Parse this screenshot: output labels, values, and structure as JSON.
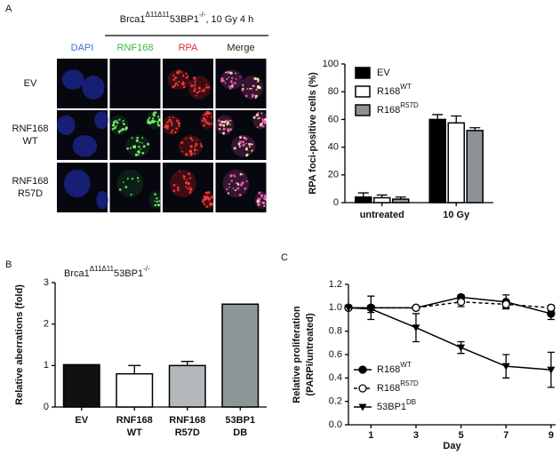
{
  "panel_labels": [
    "A",
    "B",
    "C"
  ],
  "microscopy": {
    "title_parts": [
      "Brca1",
      "Δ11Δ11",
      "53BP1",
      "-/-",
      ", 10 Gy 4 h"
    ],
    "columns": [
      {
        "label": "DAPI",
        "color": "#3f6fd8"
      },
      {
        "label": "RNF168",
        "color": "#3cb83c"
      },
      {
        "label": "RPA",
        "color": "#e03030"
      },
      {
        "label": "Merge",
        "color": "#222222"
      }
    ],
    "rows": [
      [
        "EV"
      ],
      [
        "RNF168",
        "WT"
      ],
      [
        "RNF168",
        "R57D"
      ]
    ]
  },
  "chart_data": [
    {
      "type": "bar",
      "ylabel": "RPA foci-positive cells (%)",
      "categories": [
        "untreated",
        "10 Gy"
      ],
      "series": [
        {
          "name": "EV",
          "color": "#000000",
          "values": [
            4,
            60
          ],
          "errors": [
            3,
            3.5
          ]
        },
        {
          "name": "R168",
          "name_sup": "WT",
          "color": "#ffffff",
          "values": [
            3.5,
            57.5
          ],
          "errors": [
            2,
            5
          ]
        },
        {
          "name": "R168",
          "name_sup": "R57D",
          "color": "#8c9396",
          "values": [
            2.5,
            52
          ],
          "errors": [
            1.5,
            2
          ]
        }
      ],
      "ylim": [
        0,
        100
      ],
      "yticks": [
        0,
        20,
        40,
        60,
        80,
        100
      ],
      "legend": "upper left"
    },
    {
      "type": "bar",
      "title_parts": [
        "Brca1",
        "Δ11Δ11",
        "53BP1",
        "-/-"
      ],
      "ylabel": "Relative aberrations (fold)",
      "categories": [
        [
          "EV"
        ],
        [
          "RNF168",
          "WT"
        ],
        [
          "RNF168",
          "R57D"
        ],
        [
          "53BP1",
          "DB"
        ]
      ],
      "values": [
        1.02,
        0.8,
        1.0,
        2.48
      ],
      "errors": [
        null,
        0.2,
        0.1,
        null
      ],
      "colors": [
        "#111111",
        "#ffffff",
        "#b2b8bc",
        "#8e9598"
      ],
      "ylim": [
        0,
        3
      ],
      "yticks": [
        0,
        1,
        2,
        3
      ]
    },
    {
      "type": "line",
      "ylabel": [
        "Relative proliferation",
        "(PARPi/untreated)"
      ],
      "xlabel": "Day",
      "x": [
        0,
        1,
        3,
        5,
        7,
        9
      ],
      "series": [
        {
          "name": "R168",
          "name_sup": "WT",
          "color": "#000000",
          "marker": "circle",
          "values": [
            1.0,
            1.0,
            1.0,
            1.09,
            1.05,
            0.95
          ],
          "errors": [
            0,
            0.1,
            0.01,
            0.02,
            0.06,
            0.05
          ]
        },
        {
          "name": "R168",
          "name_sup": "R57D",
          "color": "#000000",
          "marker": "open-circle",
          "dashed": true,
          "values": [
            1.0,
            1.0,
            1.0,
            1.05,
            1.03,
            1.0
          ],
          "errors": [
            0,
            0.02,
            0.01,
            0.04,
            0.03,
            0.02
          ]
        },
        {
          "name": "53BP1",
          "name_sup": "DB",
          "color": "#000000",
          "marker": "triangle-down",
          "values": [
            1.0,
            0.99,
            0.83,
            0.66,
            0.5,
            0.47
          ],
          "errors": [
            0,
            0.03,
            0.12,
            0.05,
            0.1,
            0.15
          ]
        }
      ],
      "xlim": [
        0,
        9.2
      ],
      "xticks": [
        1,
        3,
        5,
        7,
        9
      ],
      "ylim": [
        0,
        1.2
      ],
      "yticks": [
        {
          "value": 0,
          "label": "0.0"
        },
        0.2,
        0.4,
        0.6,
        0.8,
        {
          "value": 1,
          "label": "1.0"
        },
        1.2
      ],
      "legend": "lower left"
    }
  ]
}
